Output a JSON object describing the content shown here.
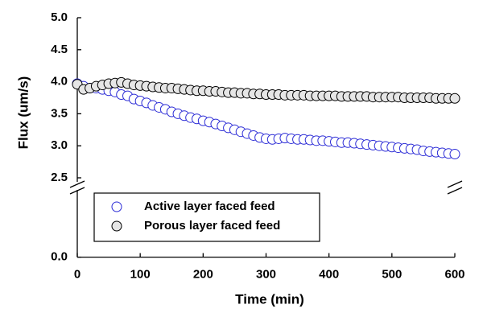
{
  "chart_data": {
    "type": "scatter",
    "x_label": "Time (min)",
    "y_label": "Flux (um/s)",
    "x": [
      0,
      10,
      20,
      30,
      40,
      50,
      60,
      70,
      80,
      90,
      100,
      110,
      120,
      130,
      140,
      150,
      160,
      170,
      180,
      190,
      200,
      210,
      220,
      230,
      240,
      250,
      260,
      270,
      280,
      290,
      300,
      310,
      320,
      330,
      340,
      350,
      360,
      370,
      380,
      390,
      400,
      410,
      420,
      430,
      440,
      450,
      460,
      470,
      480,
      490,
      500,
      510,
      520,
      530,
      540,
      550,
      560,
      570,
      580,
      590,
      600
    ],
    "series": [
      {
        "name": "Active layer faced feed",
        "color": "#2b2bd6",
        "fill": "#ffffff",
        "values": [
          3.97,
          3.93,
          3.9,
          3.9,
          3.88,
          3.86,
          3.84,
          3.8,
          3.78,
          3.73,
          3.7,
          3.67,
          3.63,
          3.6,
          3.57,
          3.53,
          3.5,
          3.47,
          3.44,
          3.42,
          3.39,
          3.37,
          3.34,
          3.31,
          3.28,
          3.25,
          3.22,
          3.19,
          3.16,
          3.13,
          3.11,
          3.1,
          3.11,
          3.12,
          3.11,
          3.1,
          3.1,
          3.09,
          3.08,
          3.08,
          3.07,
          3.06,
          3.05,
          3.05,
          3.04,
          3.03,
          3.02,
          3.01,
          3.0,
          2.99,
          2.98,
          2.97,
          2.96,
          2.95,
          2.94,
          2.92,
          2.91,
          2.9,
          2.89,
          2.88,
          2.87
        ]
      },
      {
        "name": "Porous layer faced feed",
        "color": "#000000",
        "fill": "#e6e6e6",
        "values": [
          3.96,
          3.88,
          3.9,
          3.93,
          3.95,
          3.97,
          3.98,
          3.99,
          3.97,
          3.95,
          3.94,
          3.93,
          3.92,
          3.91,
          3.9,
          3.9,
          3.89,
          3.88,
          3.87,
          3.86,
          3.86,
          3.85,
          3.85,
          3.84,
          3.83,
          3.83,
          3.82,
          3.82,
          3.81,
          3.81,
          3.8,
          3.8,
          3.8,
          3.79,
          3.79,
          3.79,
          3.79,
          3.78,
          3.78,
          3.78,
          3.78,
          3.78,
          3.77,
          3.77,
          3.77,
          3.77,
          3.77,
          3.76,
          3.76,
          3.76,
          3.76,
          3.76,
          3.75,
          3.75,
          3.75,
          3.75,
          3.75,
          3.74,
          3.74,
          3.74,
          3.74
        ]
      }
    ],
    "xlim": [
      0,
      600
    ],
    "xticks": [
      0,
      100,
      200,
      300,
      400,
      500,
      600
    ],
    "ylim": [
      0,
      5
    ],
    "ybreak": [
      1,
      2.5
    ],
    "yticks": [
      {
        "value": 0,
        "label": "0.0"
      },
      2.5,
      {
        "value": 3,
        "label": "3.0"
      },
      3.5,
      {
        "value": 4,
        "label": "4.0"
      },
      4.5,
      {
        "value": 5,
        "label": "5.0"
      }
    ],
    "legend": "lower-left"
  }
}
